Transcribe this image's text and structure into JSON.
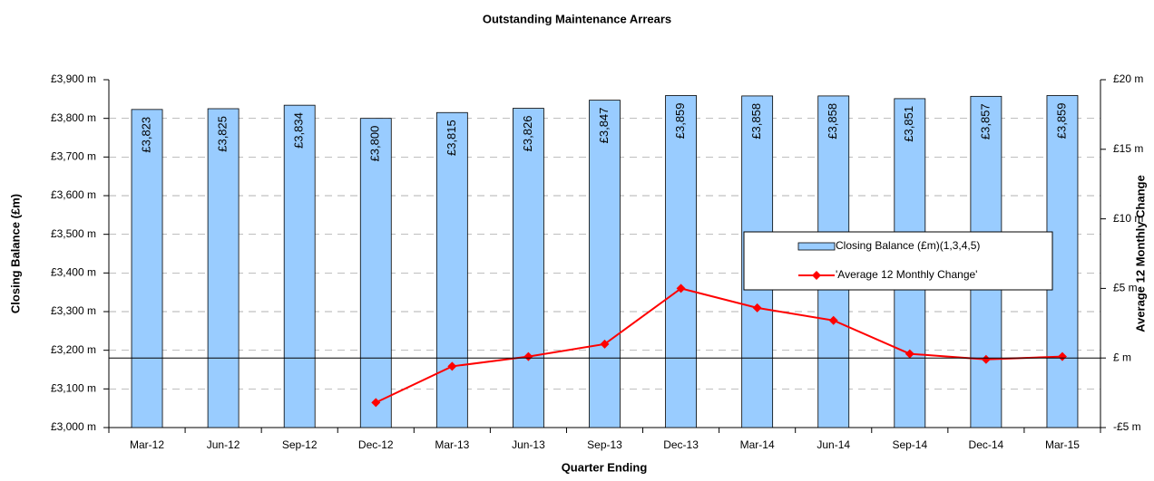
{
  "chart_data": {
    "type": "bar_line",
    "title": "Outstanding Maintenance Arrears",
    "xlabel": "Quarter Ending",
    "ylabel": "Closing Balance (£m)",
    "y2label": "Average 12 Monthly Change",
    "categories": [
      "Mar-12",
      "Jun-12",
      "Sep-12",
      "Dec-12",
      "Mar-13",
      "Jun-13",
      "Sep-13",
      "Dec-13",
      "Mar-14",
      "Jun-14",
      "Sep-14",
      "Dec-14",
      "Mar-15"
    ],
    "series": [
      {
        "name": "Closing Balance (£m)(1,3,4,5)",
        "type": "bar",
        "color": "#99ccff",
        "axis": "y",
        "values": [
          3823,
          3825,
          3834,
          3800,
          3815,
          3826,
          3847,
          3859,
          3858,
          3858,
          3851,
          3857,
          3859
        ],
        "value_labels": [
          "£3,823",
          "£3,825",
          "£3,834",
          "£3,800",
          "£3,815",
          "£3,826",
          "£3,847",
          "£3,859",
          "£3,858",
          "£3,858",
          "£3,851",
          "£3,857",
          "£3,859"
        ]
      },
      {
        "name": "'Average 12 Monthly Change'",
        "type": "line",
        "color": "#ff0000",
        "axis": "y2",
        "values": [
          null,
          null,
          null,
          -3.2,
          -0.6,
          0.1,
          1.0,
          5.0,
          3.6,
          2.7,
          0.3,
          -0.1,
          0.1
        ]
      }
    ],
    "ylim": [
      3000,
      3900
    ],
    "yticks": [
      {
        "value": 3000,
        "label": "£3,000 m"
      },
      {
        "value": 3100,
        "label": "£3,100 m"
      },
      {
        "value": 3200,
        "label": "£3,200 m"
      },
      {
        "value": 3300,
        "label": "£3,300 m"
      },
      {
        "value": 3400,
        "label": "£3,400 m"
      },
      {
        "value": 3500,
        "label": "£3,500 m"
      },
      {
        "value": 3600,
        "label": "£3,600 m"
      },
      {
        "value": 3700,
        "label": "£3,700 m"
      },
      {
        "value": 3800,
        "label": "£3,800 m"
      },
      {
        "value": 3900,
        "label": "£3,900 m"
      }
    ],
    "y2lim": [
      -5,
      20
    ],
    "y2ticks": [
      {
        "value": -5,
        "label": "-£5 m"
      },
      {
        "value": 0,
        "label": "£ m"
      },
      {
        "value": 5,
        "label": "£5 m"
      },
      {
        "value": 10,
        "label": "£10 m"
      },
      {
        "value": 15,
        "label": "£15 m"
      },
      {
        "value": 20,
        "label": "£20 m"
      }
    ],
    "grid": true,
    "legend": "right"
  }
}
